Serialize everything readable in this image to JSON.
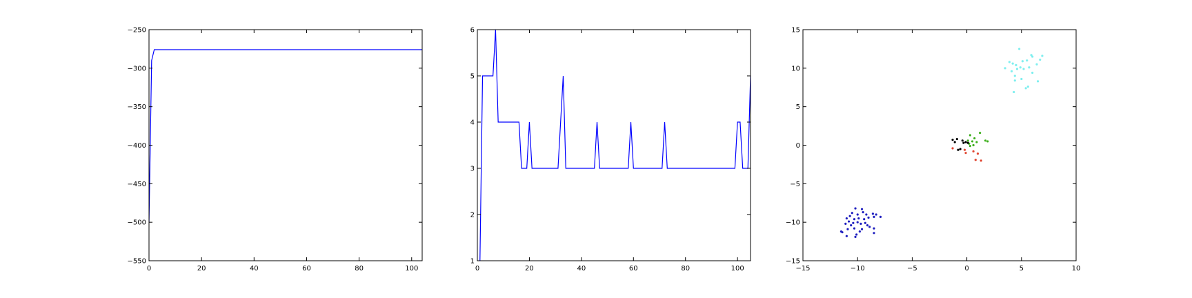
{
  "chart_data": [
    {
      "type": "line",
      "xlim": [
        0,
        104
      ],
      "ylim": [
        -550,
        -250
      ],
      "xticks": [
        0,
        20,
        40,
        60,
        80,
        100
      ],
      "yticks": [
        -250,
        -300,
        -350,
        -400,
        -450,
        -500,
        -550
      ],
      "series": [
        {
          "color": "#0000ff",
          "x": [
            0,
            1,
            2,
            104
          ],
          "y": [
            -500,
            -290,
            -276,
            -276
          ]
        }
      ]
    },
    {
      "type": "line",
      "xlim": [
        0,
        105
      ],
      "ylim": [
        1,
        6
      ],
      "xticks": [
        0,
        20,
        40,
        60,
        80,
        100
      ],
      "yticks": [
        1,
        2,
        3,
        4,
        5,
        6
      ],
      "series": [
        {
          "color": "#0000ff",
          "x": [
            0,
            1,
            2,
            3,
            4,
            5,
            6,
            7,
            8,
            9,
            10,
            11,
            12,
            13,
            14,
            15,
            16,
            17,
            18,
            19,
            20,
            21,
            22,
            23,
            24,
            25,
            26,
            27,
            28,
            29,
            30,
            31,
            32,
            33,
            34,
            35,
            36,
            37,
            38,
            39,
            40,
            41,
            42,
            43,
            44,
            45,
            46,
            47,
            48,
            49,
            50,
            51,
            52,
            53,
            54,
            55,
            56,
            57,
            58,
            59,
            60,
            61,
            62,
            63,
            64,
            65,
            66,
            67,
            68,
            69,
            70,
            71,
            72,
            73,
            74,
            75,
            76,
            77,
            78,
            79,
            80,
            81,
            82,
            83,
            84,
            85,
            86,
            87,
            88,
            89,
            90,
            91,
            92,
            93,
            94,
            95,
            96,
            97,
            98,
            99,
            100,
            101,
            102,
            103,
            104,
            105
          ],
          "y": [
            0,
            1,
            5,
            5,
            5,
            5,
            5,
            6,
            4,
            4,
            4,
            4,
            4,
            4,
            4,
            4,
            4,
            3,
            3,
            3,
            4,
            3,
            3,
            3,
            3,
            3,
            3,
            3,
            3,
            3,
            3,
            3,
            4,
            5,
            3,
            3,
            3,
            3,
            3,
            3,
            3,
            3,
            3,
            3,
            3,
            3,
            4,
            3,
            3,
            3,
            3,
            3,
            3,
            3,
            3,
            3,
            3,
            3,
            3,
            4,
            3,
            3,
            3,
            3,
            3,
            3,
            3,
            3,
            3,
            3,
            3,
            3,
            4,
            3,
            3,
            3,
            3,
            3,
            3,
            3,
            3,
            3,
            3,
            3,
            3,
            3,
            3,
            3,
            3,
            3,
            3,
            3,
            3,
            3,
            3,
            3,
            3,
            3,
            3,
            3,
            4,
            4,
            3,
            3,
            3,
            5
          ]
        }
      ]
    },
    {
      "type": "scatter",
      "xlim": [
        -15,
        10
      ],
      "ylim": [
        -15,
        15
      ],
      "xticks": [
        -15,
        -10,
        -5,
        0,
        5,
        10
      ],
      "yticks": [
        15,
        10,
        5,
        0,
        -5,
        -10,
        -15
      ],
      "series": [
        {
          "color": "#1f1fbf",
          "points": [
            [
              -10.2,
              -8.2
            ],
            [
              -9.6,
              -8.3
            ],
            [
              -10.5,
              -8.8
            ],
            [
              -10.0,
              -9.0
            ],
            [
              -9.5,
              -8.7
            ],
            [
              -9.2,
              -9.0
            ],
            [
              -8.6,
              -8.9
            ],
            [
              -8.3,
              -9.0
            ],
            [
              -7.9,
              -9.3
            ],
            [
              -8.5,
              -9.3
            ],
            [
              -10.7,
              -9.2
            ],
            [
              -11.0,
              -9.5
            ],
            [
              -10.3,
              -9.6
            ],
            [
              -9.9,
              -9.5
            ],
            [
              -9.4,
              -9.6
            ],
            [
              -9.0,
              -9.4
            ],
            [
              -10.8,
              -9.9
            ],
            [
              -10.4,
              -10.1
            ],
            [
              -10.0,
              -10.0
            ],
            [
              -9.7,
              -10.2
            ],
            [
              -9.3,
              -10.1
            ],
            [
              -11.1,
              -10.2
            ],
            [
              -10.6,
              -10.4
            ],
            [
              -9.1,
              -10.4
            ],
            [
              -8.9,
              -10.6
            ],
            [
              -10.9,
              -10.9
            ],
            [
              -10.3,
              -10.8
            ],
            [
              -9.6,
              -10.9
            ],
            [
              -8.5,
              -10.8
            ],
            [
              -11.5,
              -11.2
            ],
            [
              -11.4,
              -11.3
            ],
            [
              -10.1,
              -11.6
            ],
            [
              -10.2,
              -11.9
            ],
            [
              -11.0,
              -11.8
            ],
            [
              -8.5,
              -11.4
            ],
            [
              -9.8,
              -11.2
            ]
          ]
        },
        {
          "color": "#7fefef",
          "points": [
            [
              4.8,
              12.5
            ],
            [
              3.9,
              10.8
            ],
            [
              5.1,
              10.9
            ],
            [
              5.5,
              11.0
            ],
            [
              6.0,
              11.5
            ],
            [
              5.9,
              11.7
            ],
            [
              6.9,
              11.6
            ],
            [
              6.7,
              11.1
            ],
            [
              6.4,
              10.5
            ],
            [
              4.2,
              10.6
            ],
            [
              4.5,
              10.4
            ],
            [
              4.9,
              10.1
            ],
            [
              5.7,
              10.1
            ],
            [
              5.2,
              9.9
            ],
            [
              3.5,
              10.0
            ],
            [
              4.6,
              9.9
            ],
            [
              6.0,
              9.4
            ],
            [
              4.1,
              9.6
            ],
            [
              4.4,
              9.0
            ],
            [
              5.0,
              8.6
            ],
            [
              4.4,
              8.4
            ],
            [
              6.5,
              8.3
            ],
            [
              5.6,
              7.6
            ],
            [
              5.4,
              7.4
            ],
            [
              4.3,
              6.9
            ]
          ]
        },
        {
          "color": "#3fb01f",
          "points": [
            [
              0.3,
              1.3
            ],
            [
              0.7,
              0.9
            ],
            [
              1.2,
              1.6
            ],
            [
              0.1,
              0.6
            ],
            [
              0.5,
              0.5
            ],
            [
              0.9,
              0.4
            ],
            [
              1.7,
              0.6
            ],
            [
              1.9,
              0.5
            ],
            [
              0.2,
              0.2
            ],
            [
              0.6,
              0.0
            ],
            [
              0.3,
              -0.1
            ]
          ]
        },
        {
          "color": "#000000",
          "points": [
            [
              -1.3,
              0.7
            ],
            [
              -0.9,
              0.8
            ],
            [
              -1.1,
              0.4
            ],
            [
              -0.4,
              0.6
            ],
            [
              -0.1,
              0.4
            ],
            [
              -0.3,
              0.3
            ],
            [
              0.1,
              0.3
            ],
            [
              -0.6,
              -0.5
            ],
            [
              -0.8,
              -0.6
            ]
          ]
        },
        {
          "color": "#e0442f",
          "points": [
            [
              -1.3,
              -0.4
            ],
            [
              -0.2,
              -0.6
            ],
            [
              0.6,
              -0.8
            ],
            [
              1.0,
              -1.1
            ],
            [
              -0.1,
              -1.0
            ],
            [
              0.8,
              -1.9
            ],
            [
              1.3,
              -2.0
            ]
          ]
        }
      ]
    }
  ]
}
